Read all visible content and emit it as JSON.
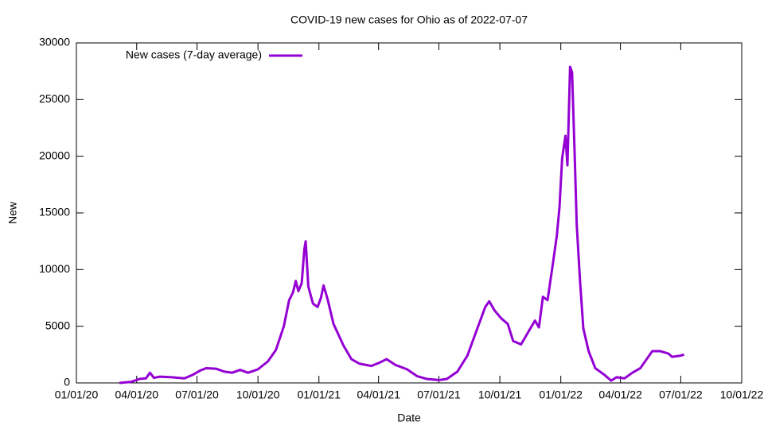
{
  "chart_data": {
    "type": "line",
    "title": "COVID-19 new cases for Ohio as of 2022-07-07",
    "x_label": "Date",
    "y_label": "New",
    "xlim": [
      "2020-01-01",
      "2022-10-01"
    ],
    "xticks": [
      {
        "value": "2020-01-01",
        "label": "01/01/20"
      },
      {
        "value": "2020-04-01",
        "label": "04/01/20"
      },
      {
        "value": "2020-07-01",
        "label": "07/01/20"
      },
      {
        "value": "2020-10-01",
        "label": "10/01/20"
      },
      {
        "value": "2021-01-01",
        "label": "01/01/21"
      },
      {
        "value": "2021-04-01",
        "label": "04/01/21"
      },
      {
        "value": "2021-07-01",
        "label": "07/01/21"
      },
      {
        "value": "2021-10-01",
        "label": "10/01/21"
      },
      {
        "value": "2022-01-01",
        "label": "01/01/22"
      },
      {
        "value": "2022-04-01",
        "label": "04/01/22"
      },
      {
        "value": "2022-07-01",
        "label": "07/01/22"
      },
      {
        "value": "2022-10-01",
        "label": "10/01/22"
      }
    ],
    "ylim": [
      0,
      30000
    ],
    "yticks": [
      0,
      5000,
      10000,
      15000,
      20000,
      25000,
      30000
    ],
    "legend_position": "top-left",
    "x": [
      "2020-03-06",
      "2020-03-24",
      "2020-04-05",
      "2020-04-15",
      "2020-04-21",
      "2020-04-27",
      "2020-05-06",
      "2020-05-24",
      "2020-06-12",
      "2020-06-24",
      "2020-07-06",
      "2020-07-15",
      "2020-07-30",
      "2020-08-11",
      "2020-08-23",
      "2020-09-04",
      "2020-09-16",
      "2020-10-01",
      "2020-10-16",
      "2020-10-28",
      "2020-11-09",
      "2020-11-17",
      "2020-11-23",
      "2020-11-27",
      "2020-12-01",
      "2020-12-06",
      "2020-12-10",
      "2020-12-12",
      "2020-12-16",
      "2020-12-23",
      "2020-12-30",
      "2021-01-04",
      "2021-01-08",
      "2021-01-14",
      "2021-01-23",
      "2021-02-07",
      "2021-02-19",
      "2021-03-03",
      "2021-03-21",
      "2021-04-03",
      "2021-04-13",
      "2021-04-26",
      "2021-05-14",
      "2021-05-29",
      "2021-06-13",
      "2021-07-01",
      "2021-07-13",
      "2021-07-29",
      "2021-08-13",
      "2021-08-28",
      "2021-09-09",
      "2021-09-15",
      "2021-09-23",
      "2021-10-03",
      "2021-10-13",
      "2021-10-21",
      "2021-11-02",
      "2021-11-14",
      "2021-11-23",
      "2021-11-29",
      "2021-12-05",
      "2021-12-12",
      "2021-12-20",
      "2021-12-26",
      "2021-12-30",
      "2022-01-03",
      "2022-01-08",
      "2022-01-11",
      "2022-01-15",
      "2022-01-18",
      "2022-01-22",
      "2022-01-25",
      "2022-01-30",
      "2022-02-04",
      "2022-02-12",
      "2022-02-22",
      "2022-03-08",
      "2022-03-18",
      "2022-03-26",
      "2022-04-07",
      "2022-04-19",
      "2022-05-01",
      "2022-05-13",
      "2022-05-19",
      "2022-05-31",
      "2022-06-12",
      "2022-06-18",
      "2022-06-30",
      "2022-07-06"
    ],
    "series": [
      {
        "name": "New cases (7-day average)",
        "color": "#9400d3",
        "values": [
          0,
          100,
          350,
          400,
          900,
          450,
          550,
          500,
          400,
          700,
          1100,
          1300,
          1250,
          1000,
          900,
          1150,
          900,
          1200,
          1900,
          2900,
          5000,
          7300,
          8000,
          9000,
          8100,
          8800,
          11800,
          12500,
          8500,
          7000,
          6700,
          7500,
          8600,
          7400,
          5200,
          3300,
          2100,
          1700,
          1500,
          1800,
          2100,
          1600,
          1200,
          600,
          350,
          250,
          350,
          1000,
          2400,
          4800,
          6700,
          7200,
          6400,
          5700,
          5200,
          3700,
          3400,
          4600,
          5500,
          4900,
          7600,
          7300,
          10500,
          13000,
          15500,
          19800,
          21800,
          19200,
          27900,
          27400,
          20000,
          14000,
          9000,
          4800,
          2800,
          1300,
          700,
          200,
          500,
          400,
          900,
          1300,
          2300,
          2800,
          2800,
          2600,
          2300,
          2400,
          2500
        ]
      }
    ]
  }
}
